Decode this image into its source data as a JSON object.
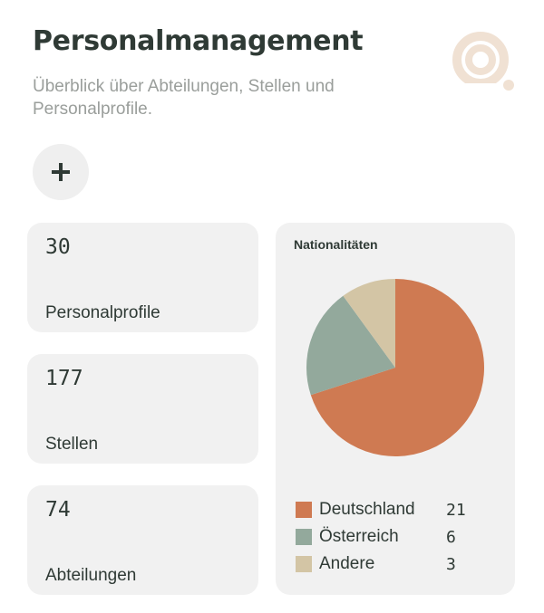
{
  "header": {
    "title": "Personalmanagement",
    "subtitle": "Überblick über Abteilungen, Stellen und Personalprofile."
  },
  "icons": {
    "logo": "person-search-icon",
    "add": "plus-icon"
  },
  "colors": {
    "deutschland": "#cf7a52",
    "oesterreich": "#93a99c",
    "andere": "#d3c5a5",
    "logo": "#f0e1d3"
  },
  "stats": [
    {
      "value": "30",
      "label": "Personalprofile"
    },
    {
      "value": "177",
      "label": "Stellen"
    },
    {
      "value": "74",
      "label": "Abteilungen"
    }
  ],
  "chart_data": {
    "type": "pie",
    "title": "Nationalitäten",
    "categories": [
      "Deutschland",
      "Österreich",
      "Andere"
    ],
    "values": [
      21,
      6,
      3
    ],
    "colors": [
      "#cf7a52",
      "#93a99c",
      "#d3c5a5"
    ],
    "legend_position": "bottom"
  }
}
